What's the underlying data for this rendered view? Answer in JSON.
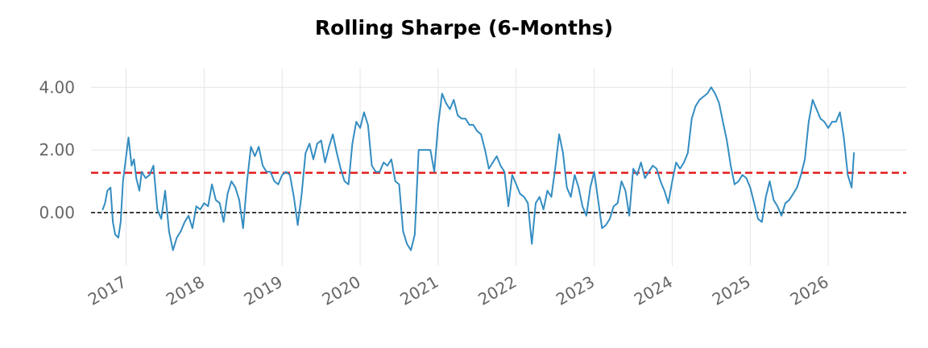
{
  "chart_data": {
    "type": "line",
    "title": "Rolling Sharpe (6-Months)",
    "xlabel": "",
    "ylabel": "",
    "xlim": [
      2016.55,
      2027.0
    ],
    "ylim": [
      -1.7,
      4.6
    ],
    "grid": true,
    "y_ticks": [
      {
        "value": 0,
        "label": "0.00"
      },
      {
        "value": 2,
        "label": "2.00"
      },
      {
        "value": 4,
        "label": "4.00"
      }
    ],
    "x_ticks": [
      {
        "value": 2017,
        "label": "2017"
      },
      {
        "value": 2018,
        "label": "2018"
      },
      {
        "value": 2019,
        "label": "2019"
      },
      {
        "value": 2020,
        "label": "2020"
      },
      {
        "value": 2021,
        "label": "2021"
      },
      {
        "value": 2022,
        "label": "2022"
      },
      {
        "value": 2023,
        "label": "2023"
      },
      {
        "value": 2024,
        "label": "2024"
      },
      {
        "value": 2025,
        "label": "2025"
      },
      {
        "value": 2026,
        "label": "2026"
      }
    ],
    "reference_lines": [
      {
        "y": 1.27,
        "color": "#e31a1c",
        "style": "dashed"
      },
      {
        "y": 0,
        "color": "#000000",
        "style": "dashed"
      }
    ],
    "series": [
      {
        "color": "#348dc1",
        "x": [
          2016.7,
          2016.73,
          2016.76,
          2016.8,
          2016.83,
          2016.86,
          2016.9,
          2016.93,
          2016.96,
          2017.0,
          2017.03,
          2017.07,
          2017.1,
          2017.13,
          2017.17,
          2017.2,
          2017.25,
          2017.3,
          2017.35,
          2017.4,
          2017.45,
          2017.5,
          2017.55,
          2017.6,
          2017.65,
          2017.7,
          2017.75,
          2017.8,
          2017.85,
          2017.9,
          2017.95,
          2018.0,
          2018.05,
          2018.1,
          2018.15,
          2018.2,
          2018.25,
          2018.3,
          2018.35,
          2018.4,
          2018.45,
          2018.5,
          2018.55,
          2018.6,
          2018.65,
          2018.7,
          2018.75,
          2018.8,
          2018.85,
          2018.9,
          2018.95,
          2019.0,
          2019.05,
          2019.1,
          2019.15,
          2019.2,
          2019.25,
          2019.3,
          2019.35,
          2019.4,
          2019.45,
          2019.5,
          2019.55,
          2019.6,
          2019.65,
          2019.7,
          2019.75,
          2019.8,
          2019.85,
          2019.9,
          2019.95,
          2020.0,
          2020.05,
          2020.1,
          2020.15,
          2020.2,
          2020.25,
          2020.3,
          2020.35,
          2020.4,
          2020.45,
          2020.5,
          2020.55,
          2020.6,
          2020.65,
          2020.7,
          2020.75,
          2020.8,
          2020.85,
          2020.9,
          2020.95,
          2021.0,
          2021.05,
          2021.1,
          2021.15,
          2021.2,
          2021.25,
          2021.3,
          2021.35,
          2021.4,
          2021.45,
          2021.5,
          2021.55,
          2021.6,
          2021.65,
          2021.7,
          2021.75,
          2021.8,
          2021.85,
          2021.9,
          2021.95,
          2022.0,
          2022.05,
          2022.1,
          2022.15,
          2022.2,
          2022.25,
          2022.3,
          2022.35,
          2022.4,
          2022.45,
          2022.5,
          2022.55,
          2022.6,
          2022.65,
          2022.7,
          2022.75,
          2022.8,
          2022.85,
          2022.9,
          2022.95,
          2023.0,
          2023.05,
          2023.1,
          2023.15,
          2023.2,
          2023.25,
          2023.3,
          2023.35,
          2023.4,
          2023.45,
          2023.5,
          2023.55,
          2023.6,
          2023.65,
          2023.7,
          2023.75,
          2023.8,
          2023.85,
          2023.9,
          2023.95,
          2024.0,
          2024.05,
          2024.1,
          2024.15,
          2024.2,
          2024.25,
          2024.3,
          2024.35,
          2024.4,
          2024.45,
          2024.5,
          2024.55,
          2024.6,
          2024.65,
          2024.7,
          2024.75,
          2024.8,
          2024.85,
          2024.9,
          2024.95,
          2025.0,
          2025.05,
          2025.1,
          2025.15,
          2025.2,
          2025.25,
          2025.3,
          2025.35,
          2025.4,
          2025.45,
          2025.5,
          2025.55,
          2025.6,
          2025.65,
          2025.7,
          2025.75,
          2025.8,
          2025.85,
          2025.9,
          2025.95,
          2026.0,
          2026.05,
          2026.1,
          2026.15,
          2026.2,
          2026.25,
          2026.3,
          2026.33
        ],
        "y": [
          0.1,
          0.3,
          0.7,
          0.8,
          -0.3,
          -0.7,
          -0.8,
          -0.3,
          1.0,
          1.8,
          2.4,
          1.5,
          1.7,
          1.1,
          0.7,
          1.3,
          1.1,
          1.2,
          1.5,
          0.1,
          -0.2,
          0.7,
          -0.6,
          -1.2,
          -0.8,
          -0.6,
          -0.3,
          -0.1,
          -0.5,
          0.2,
          0.1,
          0.3,
          0.2,
          0.9,
          0.4,
          0.3,
          -0.3,
          0.6,
          1.0,
          0.8,
          0.4,
          -0.5,
          1.0,
          2.1,
          1.8,
          2.1,
          1.5,
          1.3,
          1.3,
          1.0,
          0.9,
          1.2,
          1.3,
          1.2,
          0.5,
          -0.4,
          0.6,
          1.9,
          2.2,
          1.7,
          2.2,
          2.3,
          1.6,
          2.1,
          2.5,
          1.9,
          1.4,
          1.0,
          0.9,
          2.2,
          2.9,
          2.7,
          3.2,
          2.8,
          1.5,
          1.3,
          1.3,
          1.6,
          1.5,
          1.7,
          1.0,
          0.9,
          -0.6,
          -1.0,
          -1.2,
          -0.7,
          2.0,
          2.0,
          2.0,
          2.0,
          1.3,
          2.8,
          3.8,
          3.5,
          3.3,
          3.6,
          3.1,
          3.0,
          3.0,
          2.8,
          2.8,
          2.6,
          2.5,
          2.0,
          1.4,
          1.6,
          1.8,
          1.5,
          1.3,
          0.2,
          1.2,
          0.9,
          0.6,
          0.5,
          0.3,
          -1.0,
          0.3,
          0.5,
          0.1,
          0.7,
          0.5,
          1.4,
          2.5,
          1.9,
          0.8,
          0.5,
          1.2,
          0.8,
          0.2,
          -0.1,
          0.8,
          1.3,
          0.4,
          -0.5,
          -0.4,
          -0.2,
          0.2,
          0.3,
          1.0,
          0.7,
          -0.1,
          1.4,
          1.2,
          1.6,
          1.1,
          1.3,
          1.5,
          1.4,
          1.0,
          0.7,
          0.3,
          1.0,
          1.6,
          1.4,
          1.6,
          1.9,
          3.0,
          3.4,
          3.6,
          3.7,
          3.8,
          4.0,
          3.8,
          3.5,
          2.9,
          2.3,
          1.5,
          0.9,
          1.0,
          1.2,
          1.1,
          0.8,
          0.3,
          -0.2,
          -0.3,
          0.5,
          1.0,
          0.4,
          0.2,
          -0.1,
          0.3,
          0.4,
          0.6,
          0.8,
          1.2,
          1.7,
          2.9,
          3.6,
          3.3,
          3.0,
          2.9,
          2.7,
          2.9,
          2.9,
          3.2,
          2.4,
          1.2,
          0.8,
          1.9
        ]
      }
    ]
  }
}
